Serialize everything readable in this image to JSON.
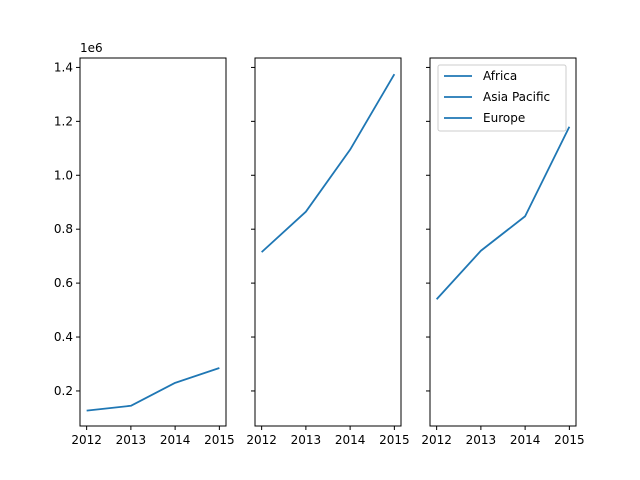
{
  "chart_data": {
    "type": "line",
    "layout": "3 subplots sharing the y axis, side by side",
    "y_offset_label": "1e6",
    "y_scale": 1000000,
    "ylim": [
      70000,
      1435000
    ],
    "xlim": [
      2011.85,
      2015.15
    ],
    "x_ticks": [
      2012,
      2013,
      2014,
      2015
    ],
    "y_ticks": [
      200000,
      400000,
      600000,
      800000,
      1000000,
      1200000,
      1400000
    ],
    "y_tick_labels": [
      "0.2",
      "0.4",
      "0.6",
      "0.8",
      "1.0",
      "1.2",
      "1.4"
    ],
    "grid": false,
    "line_color": "#1f77b4",
    "legend": {
      "placement": "top-left of third subplot",
      "entries": [
        "Africa",
        "Asia Pacific",
        "Europe"
      ]
    },
    "subplots": [
      {
        "series": [
          {
            "name": "Africa",
            "x": [
              2012,
              2013,
              2014,
              2015
            ],
            "values": [
              127000,
              145000,
              230000,
              285000
            ]
          }
        ]
      },
      {
        "series": [
          {
            "name": "Asia Pacific",
            "x": [
              2012,
              2013,
              2014,
              2015
            ],
            "values": [
              715000,
              865000,
              1095000,
              1375000
            ]
          }
        ]
      },
      {
        "series": [
          {
            "name": "Europe",
            "x": [
              2012,
              2013,
              2014,
              2015
            ],
            "values": [
              540000,
              720000,
              848000,
              1180000
            ]
          }
        ]
      }
    ]
  }
}
